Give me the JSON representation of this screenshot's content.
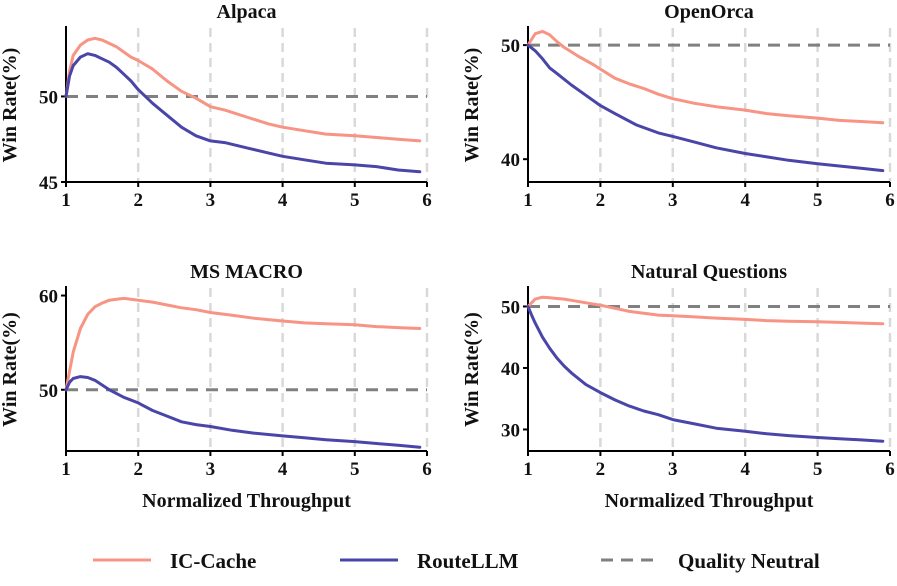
{
  "colors": {
    "ic_cache": "#F79483",
    "routellm": "#4A45A8",
    "neutral": "#808080",
    "grid": "#d9d9d9",
    "axis": "#000000"
  },
  "legend": {
    "items": [
      {
        "key": "ic_cache",
        "label": "IC-Cache",
        "style": "solid"
      },
      {
        "key": "routellm",
        "label": "RouteLLM",
        "style": "solid"
      },
      {
        "key": "neutral",
        "label": "Quality Neutral",
        "style": "dashed"
      }
    ]
  },
  "chart_data": [
    {
      "type": "line",
      "title": "Alpaca",
      "xlabel": "",
      "ylabel": "Win Rate(%)",
      "xlim": [
        1,
        6
      ],
      "ylim": [
        45,
        54
      ],
      "xticks": [
        1,
        2,
        3,
        4,
        5,
        6
      ],
      "yticks": [
        45,
        50
      ],
      "grid": "vertical dashed",
      "neutral_line": 50,
      "series": [
        {
          "name": "IC-Cache",
          "key": "ic_cache",
          "x": [
            1.0,
            1.05,
            1.1,
            1.2,
            1.3,
            1.4,
            1.5,
            1.6,
            1.7,
            1.8,
            1.9,
            2.0,
            2.2,
            2.4,
            2.6,
            2.8,
            3.0,
            3.2,
            3.5,
            3.8,
            4.0,
            4.3,
            4.6,
            5.0,
            5.3,
            5.6,
            5.9
          ],
          "y": [
            50.0,
            51.5,
            52.4,
            53.0,
            53.3,
            53.4,
            53.3,
            53.1,
            52.9,
            52.6,
            52.3,
            52.1,
            51.6,
            50.9,
            50.3,
            49.9,
            49.4,
            49.2,
            48.8,
            48.4,
            48.2,
            48.0,
            47.8,
            47.7,
            47.6,
            47.5,
            47.4
          ]
        },
        {
          "name": "RouteLLM",
          "key": "routellm",
          "x": [
            1.0,
            1.05,
            1.1,
            1.2,
            1.3,
            1.4,
            1.5,
            1.6,
            1.7,
            1.8,
            1.9,
            2.0,
            2.2,
            2.4,
            2.6,
            2.8,
            3.0,
            3.2,
            3.5,
            3.8,
            4.0,
            4.3,
            4.6,
            5.0,
            5.3,
            5.6,
            5.9
          ],
          "y": [
            50.0,
            51.2,
            51.8,
            52.3,
            52.5,
            52.4,
            52.2,
            52.0,
            51.7,
            51.3,
            50.9,
            50.4,
            49.6,
            48.9,
            48.2,
            47.7,
            47.4,
            47.3,
            47.0,
            46.7,
            46.5,
            46.3,
            46.1,
            46.0,
            45.9,
            45.7,
            45.6
          ]
        }
      ]
    },
    {
      "type": "line",
      "title": "OpenOrca",
      "xlabel": "",
      "ylabel": "Win Rate(%)",
      "xlim": [
        1,
        6
      ],
      "ylim": [
        38,
        51.5
      ],
      "xticks": [
        1,
        2,
        3,
        4,
        5,
        6
      ],
      "yticks": [
        40,
        50
      ],
      "grid": "vertical dashed",
      "neutral_line": 50,
      "series": [
        {
          "name": "IC-Cache",
          "key": "ic_cache",
          "x": [
            1.0,
            1.1,
            1.2,
            1.3,
            1.4,
            1.5,
            1.7,
            1.9,
            2.0,
            2.2,
            2.4,
            2.6,
            2.8,
            3.0,
            3.3,
            3.6,
            4.0,
            4.3,
            4.6,
            5.0,
            5.3,
            5.6,
            5.9
          ],
          "y": [
            50.0,
            51.0,
            51.2,
            50.9,
            50.3,
            49.8,
            49.0,
            48.3,
            47.9,
            47.1,
            46.6,
            46.2,
            45.7,
            45.3,
            44.9,
            44.6,
            44.3,
            44.0,
            43.8,
            43.6,
            43.4,
            43.3,
            43.2
          ]
        },
        {
          "name": "RouteLLM",
          "key": "routellm",
          "x": [
            1.0,
            1.1,
            1.2,
            1.3,
            1.4,
            1.6,
            1.8,
            2.0,
            2.2,
            2.5,
            2.8,
            3.0,
            3.3,
            3.6,
            4.0,
            4.3,
            4.6,
            5.0,
            5.3,
            5.6,
            5.9
          ],
          "y": [
            50.0,
            49.5,
            48.8,
            48.0,
            47.5,
            46.5,
            45.6,
            44.7,
            44.0,
            43.0,
            42.3,
            42.0,
            41.5,
            41.0,
            40.5,
            40.2,
            39.9,
            39.6,
            39.4,
            39.2,
            39.0
          ]
        }
      ]
    },
    {
      "type": "line",
      "title": "MS MACRO",
      "xlabel": "Normalized Throughput",
      "ylabel": "Win Rate(%)",
      "xlim": [
        1,
        6
      ],
      "ylim": [
        43.5,
        60.8
      ],
      "xticks": [
        1,
        2,
        3,
        4,
        5,
        6
      ],
      "yticks": [
        50,
        60
      ],
      "grid": "vertical dashed",
      "neutral_line": 50,
      "series": [
        {
          "name": "IC-Cache",
          "key": "ic_cache",
          "x": [
            1.0,
            1.1,
            1.2,
            1.3,
            1.4,
            1.5,
            1.6,
            1.7,
            1.8,
            1.9,
            2.0,
            2.2,
            2.4,
            2.6,
            2.8,
            3.0,
            3.3,
            3.6,
            4.0,
            4.3,
            4.6,
            5.0,
            5.3,
            5.6,
            5.9
          ],
          "y": [
            50.0,
            54.0,
            56.5,
            58.0,
            58.8,
            59.2,
            59.5,
            59.6,
            59.7,
            59.6,
            59.5,
            59.3,
            59.0,
            58.7,
            58.5,
            58.2,
            57.9,
            57.6,
            57.3,
            57.1,
            57.0,
            56.9,
            56.7,
            56.6,
            56.5
          ]
        },
        {
          "name": "RouteLLM",
          "key": "routellm",
          "x": [
            1.0,
            1.05,
            1.1,
            1.2,
            1.3,
            1.4,
            1.5,
            1.6,
            1.8,
            2.0,
            2.2,
            2.4,
            2.6,
            2.8,
            3.0,
            3.3,
            3.6,
            4.0,
            4.3,
            4.6,
            5.0,
            5.3,
            5.6,
            5.9
          ],
          "y": [
            50.0,
            50.8,
            51.2,
            51.4,
            51.3,
            51.0,
            50.5,
            50.0,
            49.2,
            48.6,
            47.8,
            47.2,
            46.6,
            46.3,
            46.1,
            45.7,
            45.4,
            45.1,
            44.9,
            44.7,
            44.5,
            44.3,
            44.1,
            43.9
          ]
        }
      ]
    },
    {
      "type": "line",
      "title": "Natural Questions",
      "xlabel": "Normalized Throughput",
      "ylabel": "Win Rate(%)",
      "xlim": [
        1,
        6
      ],
      "ylim": [
        26.5,
        53
      ],
      "xticks": [
        1,
        2,
        3,
        4,
        5,
        6
      ],
      "yticks": [
        30,
        40,
        50
      ],
      "grid": "vertical dashed",
      "neutral_line": 50,
      "series": [
        {
          "name": "IC-Cache",
          "key": "ic_cache",
          "x": [
            1.0,
            1.1,
            1.2,
            1.3,
            1.4,
            1.5,
            1.6,
            1.8,
            2.0,
            2.2,
            2.4,
            2.6,
            2.8,
            3.0,
            3.3,
            3.6,
            4.0,
            4.3,
            4.6,
            5.0,
            5.3,
            5.6,
            5.9
          ],
          "y": [
            50.0,
            51.2,
            51.5,
            51.4,
            51.3,
            51.2,
            51.0,
            50.6,
            50.2,
            49.7,
            49.2,
            48.9,
            48.6,
            48.5,
            48.3,
            48.1,
            47.9,
            47.7,
            47.6,
            47.5,
            47.4,
            47.3,
            47.2
          ]
        },
        {
          "name": "RouteLLM",
          "key": "routellm",
          "x": [
            1.0,
            1.05,
            1.1,
            1.2,
            1.3,
            1.4,
            1.5,
            1.6,
            1.8,
            2.0,
            2.2,
            2.4,
            2.6,
            2.8,
            3.0,
            3.3,
            3.6,
            4.0,
            4.3,
            4.6,
            5.0,
            5.3,
            5.6,
            5.9
          ],
          "y": [
            50.0,
            48.6,
            47.3,
            45.0,
            43.2,
            41.6,
            40.3,
            39.2,
            37.3,
            36.0,
            34.8,
            33.8,
            33.0,
            32.4,
            31.6,
            30.9,
            30.2,
            29.7,
            29.3,
            29.0,
            28.7,
            28.5,
            28.3,
            28.1
          ]
        }
      ]
    }
  ]
}
